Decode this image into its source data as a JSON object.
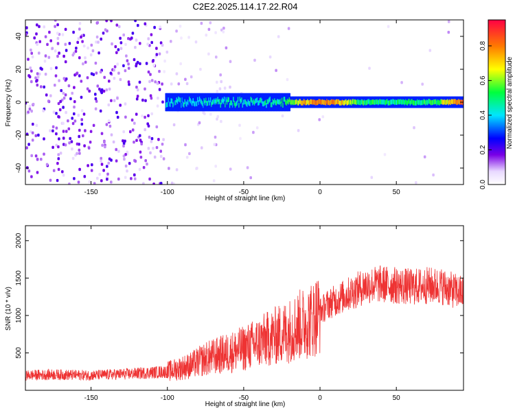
{
  "figure": {
    "title": "C2E2.2025.114.17.22.R04"
  },
  "chart_data": [
    {
      "type": "heatmap",
      "title": "C2E2.2025.114.17.22.R04",
      "xlabel": "Height of straight line (km)",
      "ylabel": "Frequency (Hz)",
      "xlim": [
        -193,
        94
      ],
      "ylim": [
        -50,
        50
      ],
      "x_ticks": [
        -150,
        -100,
        -50,
        0,
        50
      ],
      "y_ticks": [
        -40,
        -20,
        0,
        20,
        40
      ],
      "colorbar": {
        "label": "Normalized spectral amplitude",
        "range": [
          0.0,
          0.95
        ],
        "ticks": [
          0.0,
          0.2,
          0.4,
          0.6,
          0.8
        ],
        "colormap": [
          "#ffffff",
          "#7a00e6",
          "#0000ff",
          "#00e5ff",
          "#00ff3c",
          "#ffff00",
          "#ff7a00",
          "#ff0044"
        ]
      },
      "signal_band": {
        "description_values": [
          {
            "height_km": -100,
            "frequency_hz": 0,
            "amplitude": 0.4
          },
          {
            "height_km": -75,
            "frequency_hz": 0,
            "amplitude": 0.45
          },
          {
            "height_km": -50,
            "frequency_hz": 0,
            "amplitude": 0.45
          },
          {
            "height_km": -25,
            "frequency_hz": 0,
            "amplitude": 0.5
          },
          {
            "height_km": -10,
            "frequency_hz": 0,
            "amplitude": 0.75
          },
          {
            "height_km": 0,
            "frequency_hz": 0,
            "amplitude": 0.85
          },
          {
            "height_km": 10,
            "frequency_hz": 0,
            "amplitude": 0.8
          },
          {
            "height_km": 25,
            "frequency_hz": 0,
            "amplitude": 0.55
          },
          {
            "height_km": 50,
            "frequency_hz": 0,
            "amplitude": 0.5
          },
          {
            "height_km": 75,
            "frequency_hz": 0,
            "amplitude": 0.55
          },
          {
            "height_km": 90,
            "frequency_hz": 0,
            "amplitude": 0.85
          }
        ]
      }
    },
    {
      "type": "line",
      "xlabel": "Height of straight line (km)",
      "ylabel": "SNR (10 * v/v)",
      "xlim": [
        -193,
        94
      ],
      "ylim": [
        0,
        2200
      ],
      "x_ticks": [
        -150,
        -100,
        -50,
        0,
        50
      ],
      "y_ticks": [
        500,
        1000,
        1500,
        2000
      ],
      "series": [
        {
          "color": "#ee3333",
          "x": [
            -193,
            -175,
            -150,
            -125,
            -100,
            -85,
            -75,
            -60,
            -50,
            -40,
            -30,
            -20,
            -15,
            -10,
            -5,
            0,
            5,
            10,
            15,
            20,
            25,
            30,
            40,
            50,
            60,
            70,
            80,
            85,
            90,
            94
          ],
          "y": [
            200,
            210,
            200,
            220,
            250,
            330,
            420,
            500,
            560,
            640,
            720,
            800,
            860,
            900,
            950,
            1050,
            1150,
            1200,
            1250,
            1300,
            1350,
            1400,
            1420,
            1400,
            1380,
            1400,
            1390,
            1350,
            1320,
            1300
          ]
        }
      ]
    }
  ]
}
